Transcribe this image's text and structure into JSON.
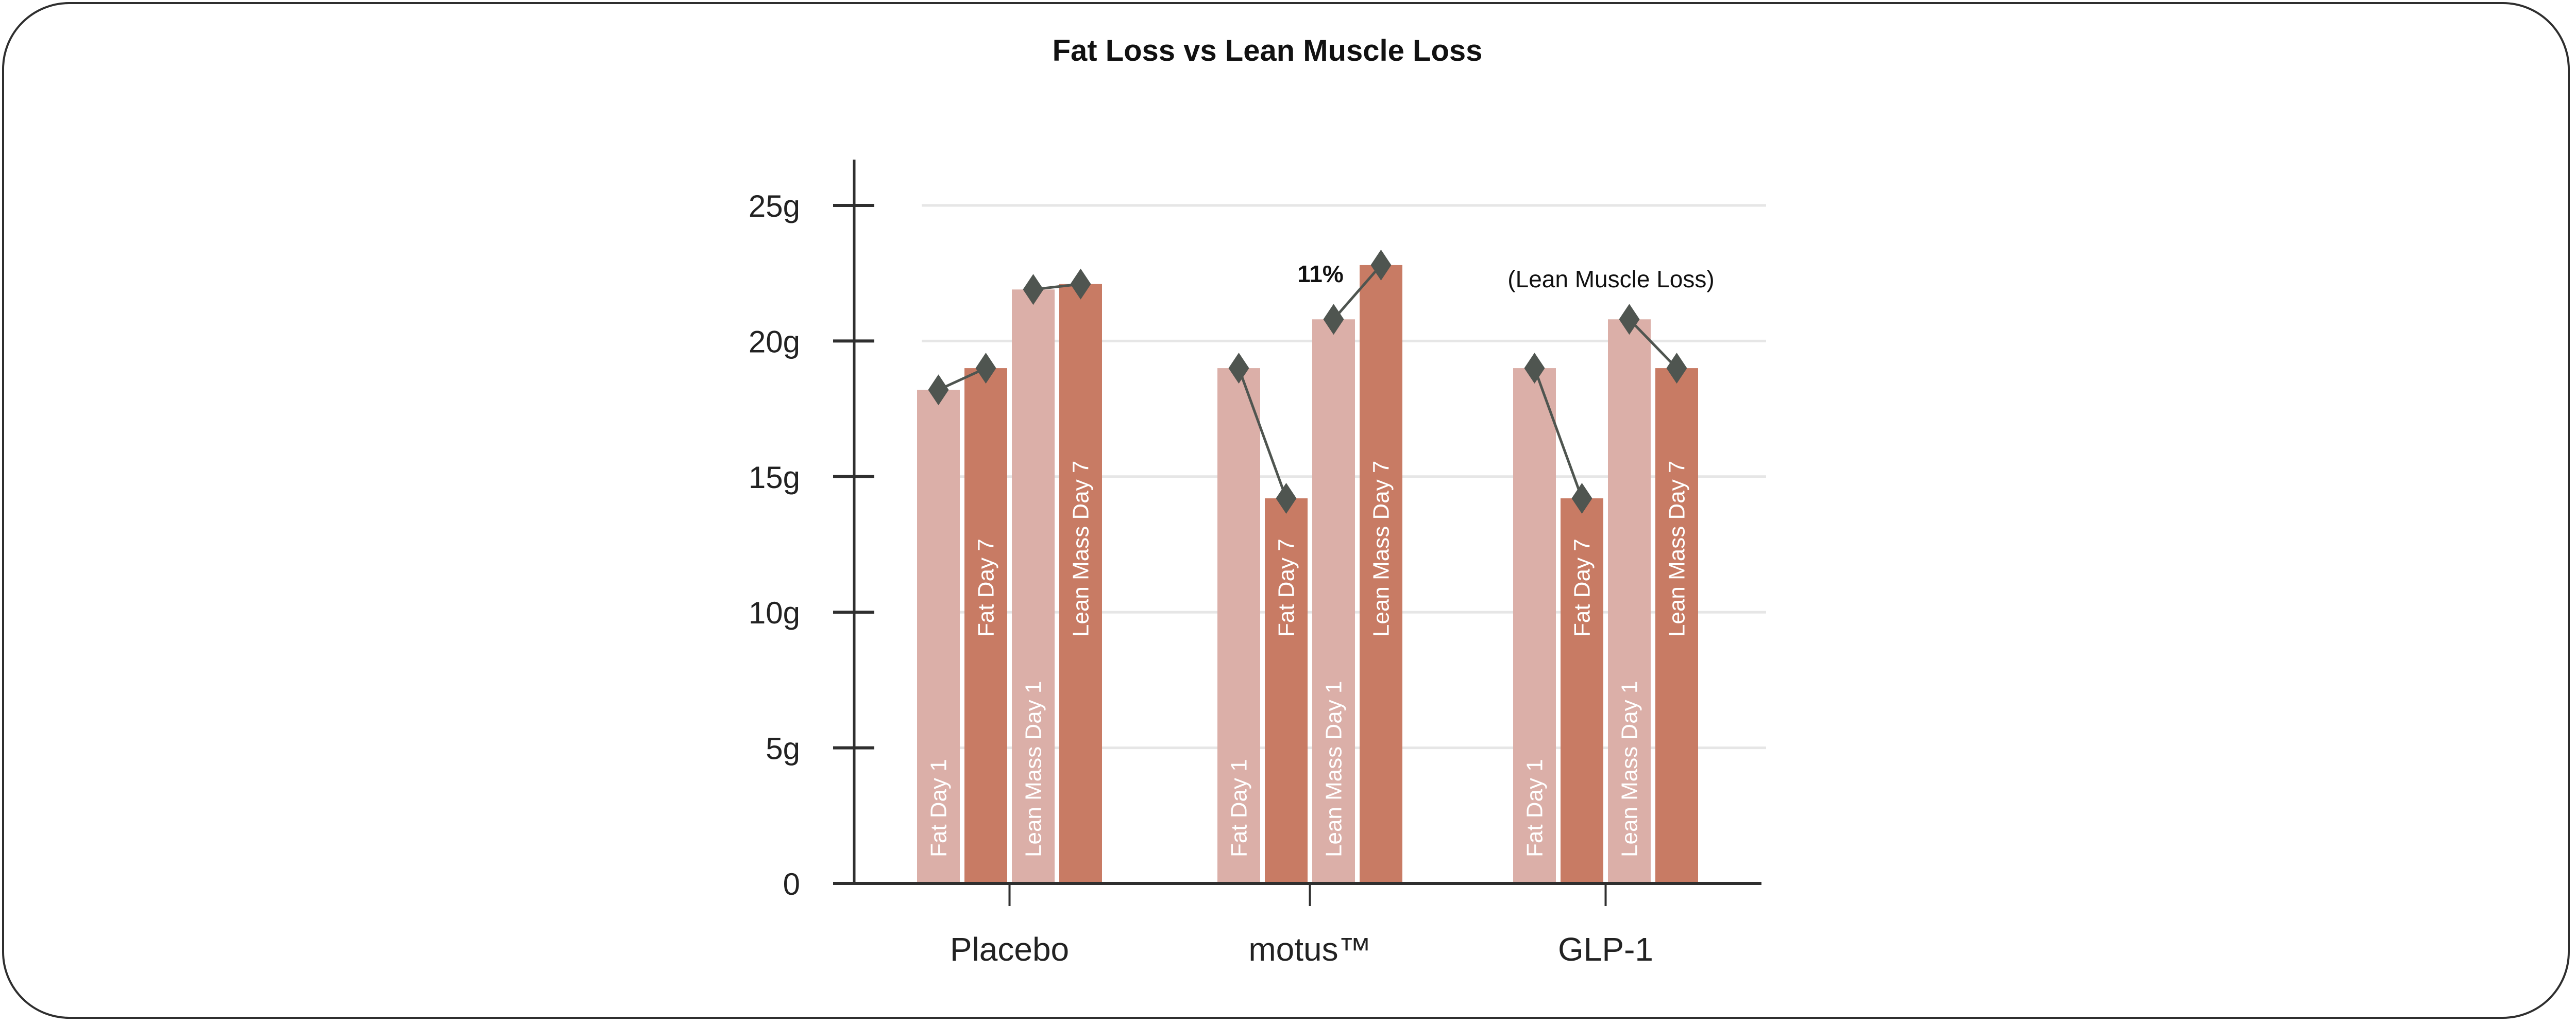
{
  "chart_data": {
    "type": "bar",
    "title": "Fat Loss vs Lean Muscle Loss",
    "xlabel": "",
    "ylabel": "",
    "ylim": [
      0,
      27
    ],
    "yticks": [
      0,
      5,
      10,
      15,
      20,
      25
    ],
    "ytick_labels": [
      "0",
      "5g",
      "10g",
      "15g",
      "20g",
      "25g"
    ],
    "grid": true,
    "categories": [
      "Placebo",
      "motus™",
      "GLP-1"
    ],
    "series": [
      {
        "name": "Fat Day 1",
        "values": [
          18.2,
          19.0,
          19.0
        ],
        "color": "#dbafa8"
      },
      {
        "name": "Fat Day 7",
        "values": [
          19.0,
          14.2,
          14.2
        ],
        "color": "#c87b64"
      },
      {
        "name": "Lean Mass Day 1",
        "values": [
          21.9,
          20.8,
          20.8
        ],
        "color": "#dbafa8"
      },
      {
        "name": "Lean Mass Day 7",
        "values": [
          22.1,
          22.8,
          19.0
        ],
        "color": "#c87b64"
      }
    ],
    "marker_color": "#4f5550",
    "annotations": [
      {
        "text": "11%",
        "category": "motus™"
      },
      {
        "text": "(Lean Muscle Loss)",
        "category": "GLP-1"
      }
    ]
  }
}
